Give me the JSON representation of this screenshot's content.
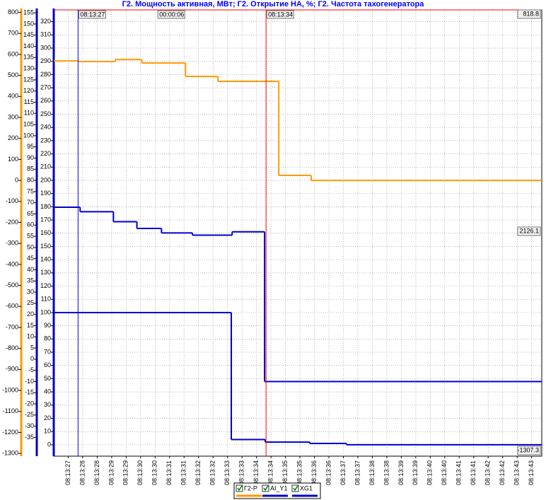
{
  "chart_data": {
    "type": "line",
    "title": "Г2. Мощность активная, МВт; Г2. Открытие НА, %; Г2. Частота тахогенератора",
    "step": "post",
    "grid": true,
    "xlim": [
      26.5,
      43.35
    ],
    "xticks": [
      {
        "value": 27,
        "label": "08:13:27"
      },
      {
        "value": 27.5,
        "label": "08:13:28"
      },
      {
        "value": 28,
        "label": "08:13:28"
      },
      {
        "value": 28.5,
        "label": "08:13:29"
      },
      {
        "value": 29,
        "label": "08:13:29"
      },
      {
        "value": 29.5,
        "label": "08:13:30"
      },
      {
        "value": 30,
        "label": "08:13:30"
      },
      {
        "value": 30.5,
        "label": "08:13:31"
      },
      {
        "value": 31,
        "label": "08:13:31"
      },
      {
        "value": 31.5,
        "label": "08:13:32"
      },
      {
        "value": 32,
        "label": "08:13:32"
      },
      {
        "value": 32.5,
        "label": "08:13:33"
      },
      {
        "value": 33,
        "label": "08:13:33"
      },
      {
        "value": 33.5,
        "label": "08:13:34"
      },
      {
        "value": 34,
        "label": "08:13:34"
      },
      {
        "value": 34.5,
        "label": "08:13:35"
      },
      {
        "value": 35,
        "label": "08:13:35"
      },
      {
        "value": 35.5,
        "label": "08:13:36"
      },
      {
        "value": 36,
        "label": "08:13:36"
      },
      {
        "value": 36.5,
        "label": "08:13:37"
      },
      {
        "value": 37,
        "label": "08:13:37"
      },
      {
        "value": 37.5,
        "label": "08:13:38"
      },
      {
        "value": 38,
        "label": "08:13:38"
      },
      {
        "value": 38.5,
        "label": "08:13:39"
      },
      {
        "value": 39,
        "label": "08:13:39"
      },
      {
        "value": 39.5,
        "label": "08:13:40"
      },
      {
        "value": 40,
        "label": "08:13:40"
      },
      {
        "value": 40.5,
        "label": "08:13:41"
      },
      {
        "value": 41,
        "label": "08:13:41"
      },
      {
        "value": 41.5,
        "label": "08:13:42"
      },
      {
        "value": 42,
        "label": "08:13:42"
      },
      {
        "value": 42.5,
        "label": "08:13:43"
      },
      {
        "value": 43,
        "label": "08:13:43"
      }
    ],
    "ylim": [
      -1313,
      812
    ],
    "yticks": [
      800,
      700,
      600,
      500,
      400,
      300,
      200,
      100,
      0,
      -100,
      -200,
      -300,
      -400,
      -500,
      -600,
      -700,
      -800,
      -900,
      -1000,
      -1100,
      -1200,
      -1300
    ],
    "ycolor": "#ff9900",
    "y2lim": [
      -43.4,
      156.3
    ],
    "y2ticks": [
      155,
      150,
      145,
      140,
      135,
      130,
      125,
      120,
      115,
      110,
      105,
      100,
      95,
      90,
      85,
      80,
      75,
      70,
      65,
      60,
      55,
      50,
      45,
      40,
      35,
      30,
      25,
      20,
      15,
      10,
      5,
      0,
      -5,
      -10,
      -15,
      -20,
      -25,
      -30,
      -35
    ],
    "y2color": "#0000cc",
    "y3lim": [
      -8.6,
      328.9
    ],
    "y3ticks": [
      320,
      310,
      300,
      290,
      280,
      270,
      260,
      250,
      240,
      230,
      220,
      210,
      200,
      190,
      180,
      170,
      160,
      150,
      140,
      130,
      120,
      110,
      100,
      90,
      80,
      70,
      60,
      50,
      40,
      30,
      20,
      10,
      0
    ],
    "y3color": "#0000cc",
    "series": [
      {
        "name": "Г2-P",
        "color": "#ff9900",
        "axis": "y",
        "x": [
          26.5,
          27.34,
          28.63,
          29.54,
          31.05,
          32.17,
          34.27,
          35.39
        ],
        "values": [
          569,
          566,
          576,
          559,
          495,
          472,
          24,
          0
        ]
      },
      {
        "name": "AI_Y1",
        "color": "#0000cc",
        "axis": "y2",
        "x": [
          26.5,
          27.41,
          28.56,
          29.37,
          30.22,
          31.29,
          32.66,
          33.78
        ],
        "values": [
          68,
          66,
          61.5,
          58.5,
          56.5,
          55.5,
          57,
          -10
        ]
      },
      {
        "name": "XG1",
        "color": "#0000cc",
        "axis": "y3",
        "x": [
          26.5,
          32.63,
          33.8,
          35.34,
          36.61
        ],
        "values": [
          100,
          4,
          2,
          1,
          0
        ]
      }
    ],
    "cursors": [
      {
        "x": 27.34,
        "label": "08:13:27",
        "color": "#0000ff"
      },
      {
        "x": 33.83,
        "label": "08:13:34",
        "color": "#ff0000"
      }
    ],
    "cursor_delta": "00:00:06",
    "readouts": [
      "818.8",
      "2126.1",
      "-1307.3"
    ]
  }
}
